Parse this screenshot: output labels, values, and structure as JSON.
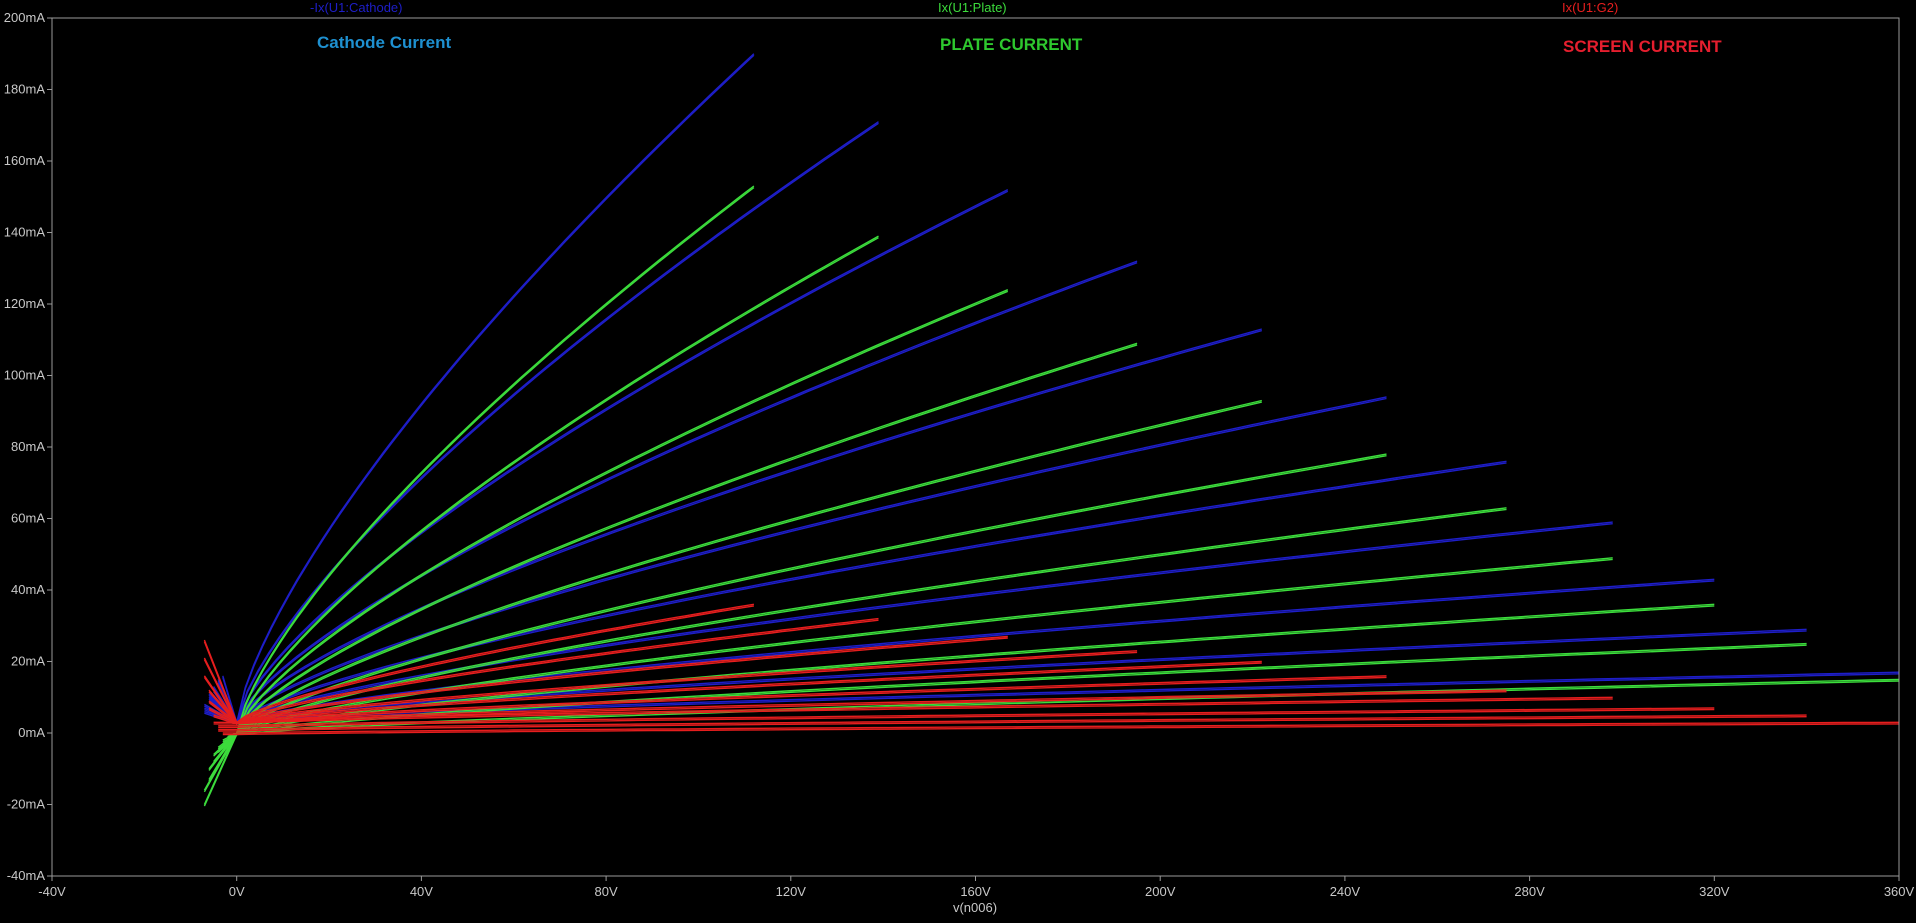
{
  "colors": {
    "background": "#000000",
    "axis": "#9a9a9a",
    "tick_text": "#c8c8c8",
    "cathode": "#1e1ec8",
    "plate": "#3cdc3c",
    "screen": "#e61e1e",
    "cathode_annotation": "#1e90d0",
    "plate_annotation": "#2ec82e",
    "screen_annotation": "#e61e2e"
  },
  "trace_labels": {
    "cathode": "-Ix(U1:Cathode)",
    "plate": "Ix(U1:Plate)",
    "screen": "Ix(U1:G2)"
  },
  "annotations": {
    "cathode": "Cathode Current",
    "plate": "PLATE CURRENT",
    "screen": "SCREEN CURRENT"
  },
  "chart_data": {
    "type": "line",
    "xlabel": "v(n006)",
    "ylabel": "",
    "xlim": [
      -40,
      360
    ],
    "ylim": [
      -40,
      200
    ],
    "x_ticks": [
      "-40V",
      "0V",
      "40V",
      "80V",
      "120V",
      "160V",
      "200V",
      "240V",
      "280V",
      "320V",
      "360V"
    ],
    "y_ticks": [
      "-40mA",
      "-20mA",
      "0mA",
      "20mA",
      "40mA",
      "60mA",
      "80mA",
      "100mA",
      "120mA",
      "140mA",
      "160mA",
      "180mA",
      "200mA"
    ],
    "grid": false,
    "series": [
      {
        "name": "-Ix(U1:Cathode)",
        "color": "#1e1ec8",
        "curves": [
          {
            "start": [
              -7,
              6
            ],
            "end": [
              112,
              190
            ]
          },
          {
            "start": [
              -7,
              7
            ],
            "end": [
              139,
              171
            ]
          },
          {
            "start": [
              -7,
              8
            ],
            "end": [
              167,
              152
            ]
          },
          {
            "start": [
              -6,
              9
            ],
            "end": [
              195,
              132
            ]
          },
          {
            "start": [
              -6,
              10
            ],
            "end": [
              222,
              113
            ]
          },
          {
            "start": [
              -6,
              11
            ],
            "end": [
              249,
              94
            ]
          },
          {
            "start": [
              -5,
              12
            ],
            "end": [
              275,
              76
            ]
          },
          {
            "start": [
              -5,
              13
            ],
            "end": [
              298,
              59
            ]
          },
          {
            "start": [
              -4,
              14
            ],
            "end": [
              320,
              43
            ]
          },
          {
            "start": [
              -4,
              15
            ],
            "end": [
              340,
              29
            ]
          },
          {
            "start": [
              -3,
              16
            ],
            "end": [
              360,
              17
            ]
          }
        ]
      },
      {
        "name": "Ix(U1:Plate)",
        "color": "#3cdc3c",
        "curves": [
          {
            "start": [
              -7,
              -20
            ],
            "end": [
              112,
              153
            ]
          },
          {
            "start": [
              -7,
              -16
            ],
            "end": [
              139,
              139
            ]
          },
          {
            "start": [
              -6,
              -13
            ],
            "end": [
              167,
              124
            ]
          },
          {
            "start": [
              -6,
              -10
            ],
            "end": [
              195,
              109
            ]
          },
          {
            "start": [
              -5,
              -8
            ],
            "end": [
              222,
              93
            ]
          },
          {
            "start": [
              -5,
              -6
            ],
            "end": [
              249,
              78
            ]
          },
          {
            "start": [
              -4,
              -5
            ],
            "end": [
              275,
              63
            ]
          },
          {
            "start": [
              -4,
              -4
            ],
            "end": [
              298,
              49
            ]
          },
          {
            "start": [
              -3,
              -3
            ],
            "end": [
              320,
              36
            ]
          },
          {
            "start": [
              -3,
              -2
            ],
            "end": [
              340,
              25
            ]
          },
          {
            "start": [
              -2,
              -1
            ],
            "end": [
              360,
              15
            ]
          }
        ]
      },
      {
        "name": "Ix(U1:G2)",
        "color": "#e61e1e",
        "curves": [
          {
            "start": [
              -7,
              26
            ],
            "end": [
              112,
              36
            ]
          },
          {
            "start": [
              -7,
              21
            ],
            "end": [
              139,
              32
            ]
          },
          {
            "start": [
              -7,
              16
            ],
            "end": [
              167,
              27
            ]
          },
          {
            "start": [
              -6,
              12
            ],
            "end": [
              195,
              23
            ]
          },
          {
            "start": [
              -6,
              9
            ],
            "end": [
              222,
              20
            ]
          },
          {
            "start": [
              -6,
              7
            ],
            "end": [
              249,
              16
            ]
          },
          {
            "start": [
              -5,
              5
            ],
            "end": [
              275,
              12
            ]
          },
          {
            "start": [
              -5,
              3
            ],
            "end": [
              298,
              10
            ]
          },
          {
            "start": [
              -4,
              2
            ],
            "end": [
              320,
              7
            ]
          },
          {
            "start": [
              -4,
              1
            ],
            "end": [
              340,
              5
            ]
          },
          {
            "start": [
              -3,
              0
            ],
            "end": [
              360,
              3
            ]
          }
        ]
      }
    ]
  }
}
